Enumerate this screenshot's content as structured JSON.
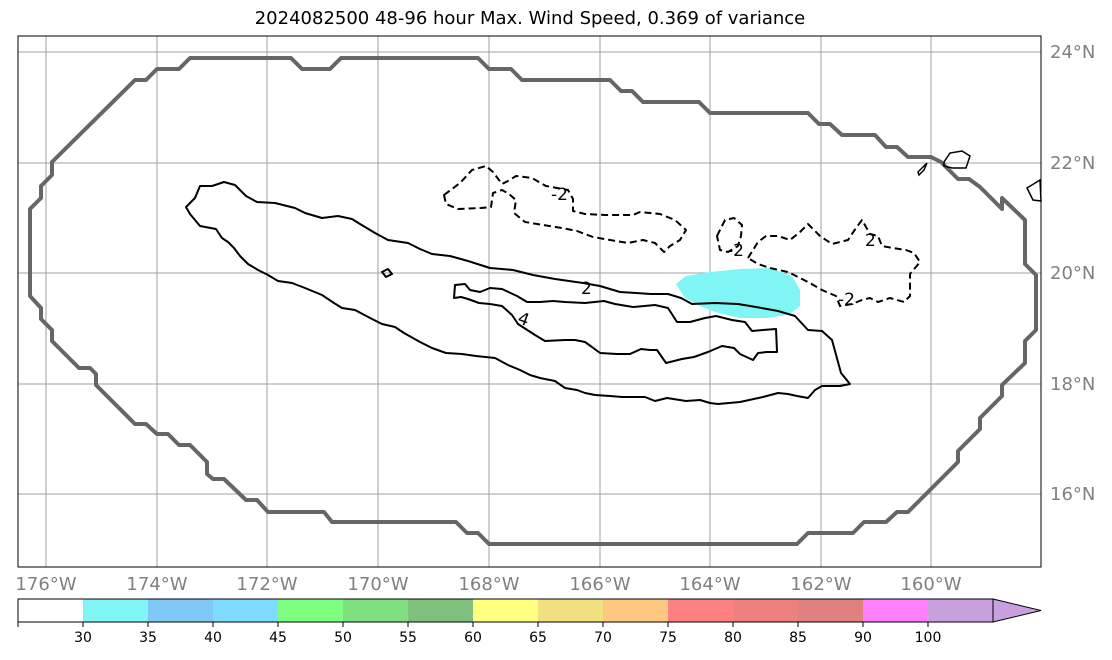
{
  "title": "2024082500 48-96 hour Max. Wind Speed, 0.369 of variance",
  "map": {
    "lon_labels": [
      "176°W",
      "174°W",
      "172°W",
      "170°W",
      "168°W",
      "166°W",
      "164°W",
      "162°W",
      "160°W"
    ],
    "lat_labels": [
      "24°N",
      "22°N",
      "20°N",
      "18°N",
      "16°N"
    ],
    "contour_labels": [
      "2",
      "2",
      "2",
      "-2",
      "-2",
      "-2",
      "4"
    ],
    "colors": {
      "domain_outline": "#666666",
      "contour": "#000000",
      "gridline": "#a0a0a0",
      "shaded_30_35": "#7ff5f5"
    }
  },
  "colorbar": {
    "tick_labels": [
      "30",
      "35",
      "40",
      "45",
      "50",
      "55",
      "60",
      "65",
      "70",
      "75",
      "80",
      "85",
      "90",
      "100"
    ],
    "colors": [
      "#ffffff",
      "#7ff5f5",
      "#80c8f8",
      "#7fdcff",
      "#7fff7f",
      "#7fe07f",
      "#7fc07f",
      "#ffff80",
      "#f0e080",
      "#ffc880",
      "#ff8080",
      "#ee8080",
      "#e08080",
      "#ff80ff",
      "#c8a0e0",
      "#c8a0e0"
    ]
  }
}
